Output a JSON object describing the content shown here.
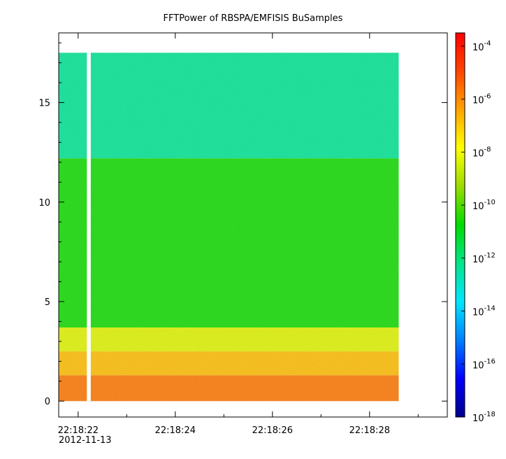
{
  "chart_data": {
    "type": "heatmap",
    "title": "FFTPower of RBSPA/EMFISIS  BuSamples",
    "xlabel": "",
    "ylabel": "",
    "x_start": "2012-11-13 22:18:21.6",
    "x_end": "2012-11-13 22:18:28.6",
    "x_ticks": [
      "22:18:22",
      "22:18:24",
      "22:18:26",
      "22:18:28"
    ],
    "x_tick_secs": [
      22,
      24,
      26,
      28
    ],
    "x_minor_tick_secs": [
      23,
      25,
      27,
      29
    ],
    "x_axis_range_secs": [
      21.6,
      29.6
    ],
    "date_label": "2012-11-13",
    "ylim": [
      -0.8,
      18.5
    ],
    "y_ticks": [
      "0",
      "5",
      "10",
      "15"
    ],
    "y_tick_values": [
      0,
      5,
      10,
      15
    ],
    "y_data_range": [
      0,
      17.5
    ],
    "data_gap_secs": [
      22.18,
      22.26
    ],
    "bands": [
      {
        "y_from": 0,
        "y_to": 1.3,
        "log10_power": -5.7
      },
      {
        "y_from": 1.3,
        "y_to": 2.5,
        "log10_power": -6.8
      },
      {
        "y_from": 2.5,
        "y_to": 3.7,
        "log10_power": -8.3
      },
      {
        "y_from": 3.7,
        "y_to": 12.2,
        "log10_power": -10.6
      },
      {
        "y_from": 12.2,
        "y_to": 17.5,
        "log10_power": -12.3
      }
    ],
    "colorbar": {
      "scale": "log",
      "range_exp": [
        -18,
        -3.5
      ],
      "tick_exponents": [
        "-18",
        "-16",
        "-14",
        "-12",
        "-10",
        "-8",
        "-6",
        "-4"
      ],
      "colors": [
        "#00008b",
        "#0000ff",
        "#0080ff",
        "#00e5ff",
        "#00e58c",
        "#00dc00",
        "#9bdc00",
        "#ffff00",
        "#ffa500",
        "#ff4500",
        "#ff0000"
      ]
    },
    "grid": false
  },
  "labels": {
    "tick_base": "10"
  }
}
